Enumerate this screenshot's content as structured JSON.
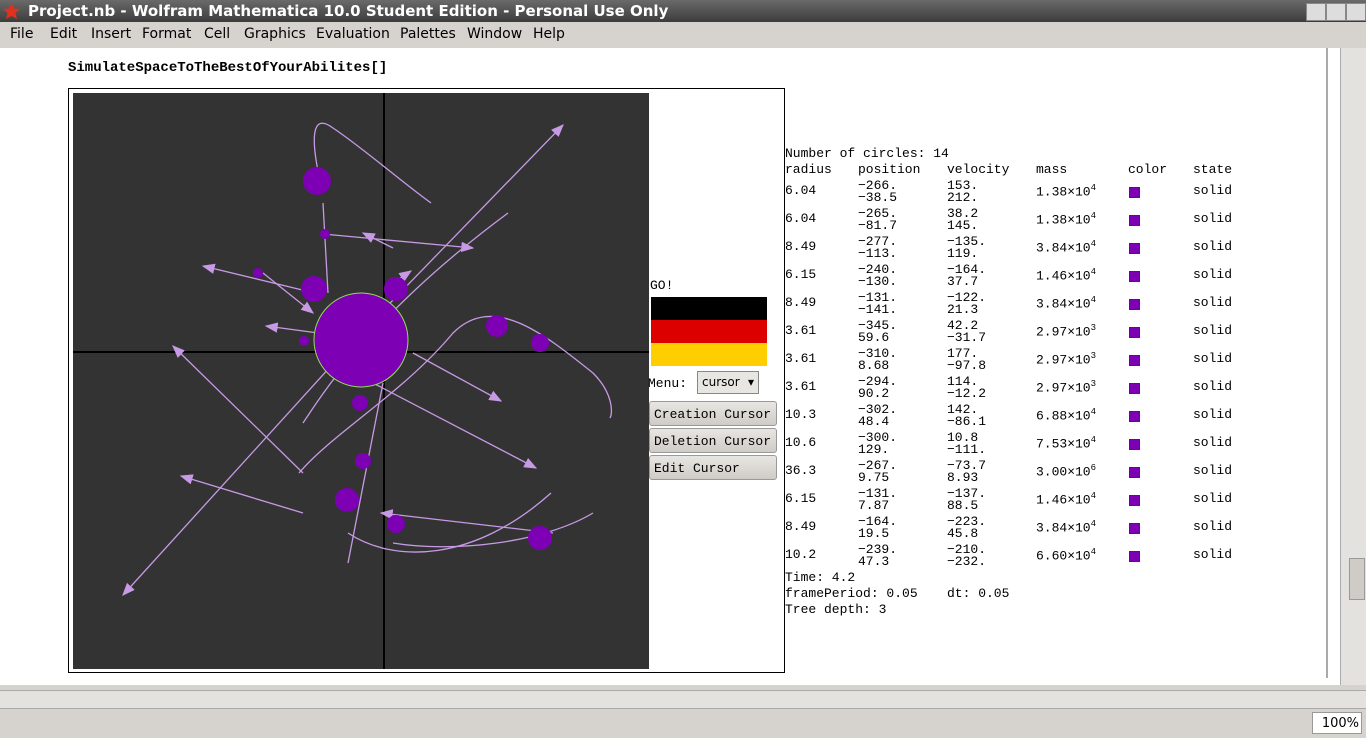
{
  "window": {
    "title": "Project.nb - Wolfram Mathematica 10.0 Student Edition - Personal Use Only",
    "menu": [
      "File",
      "Edit",
      "Insert",
      "Format",
      "Cell",
      "Graphics",
      "Evaluation",
      "Palettes",
      "Window",
      "Help"
    ],
    "zoom": "100%"
  },
  "notebook": {
    "code": "SimulateSpaceToTheBestOfYourAbilites[]"
  },
  "controls": {
    "go": "GO!",
    "menu_label": "Menu:",
    "menu_value": "cursor",
    "buttons": [
      "Creation Cursor",
      "Deletion Cursor",
      "Edit Cursor"
    ]
  },
  "info": {
    "count": "Number of circles: 14",
    "time": "Time: 4.2",
    "frame_period": "framePeriod: 0.05",
    "dt": "dt: 0.05",
    "tree_depth": "Tree depth: 3"
  },
  "table": {
    "header": [
      "radius",
      "position",
      "velocity",
      "mass",
      "color",
      "state"
    ],
    "rows": [
      {
        "radius": "6.04",
        "position": [
          "−266.",
          "−38.5"
        ],
        "velocity": [
          "153.",
          "212."
        ],
        "mass": {
          "base": "1.38×10",
          "exp": "4"
        },
        "state": "solid"
      },
      {
        "radius": "6.04",
        "position": [
          "−265.",
          "−81.7"
        ],
        "velocity": [
          "38.2",
          "145."
        ],
        "mass": {
          "base": "1.38×10",
          "exp": "4"
        },
        "state": "solid"
      },
      {
        "radius": "8.49",
        "position": [
          "−277.",
          "−113."
        ],
        "velocity": [
          "−135.",
          "119."
        ],
        "mass": {
          "base": "3.84×10",
          "exp": "4"
        },
        "state": "solid"
      },
      {
        "radius": "6.15",
        "position": [
          "−240.",
          "−130."
        ],
        "velocity": [
          "−164.",
          "37.7"
        ],
        "mass": {
          "base": "1.46×10",
          "exp": "4"
        },
        "state": "solid"
      },
      {
        "radius": "8.49",
        "position": [
          "−131.",
          "−141."
        ],
        "velocity": [
          "−122.",
          "21.3"
        ],
        "mass": {
          "base": "3.84×10",
          "exp": "4"
        },
        "state": "solid"
      },
      {
        "radius": "3.61",
        "position": [
          "−345.",
          "59.6"
        ],
        "velocity": [
          "42.2",
          "−31.7"
        ],
        "mass": {
          "base": "2.97×10",
          "exp": "3"
        },
        "state": "solid"
      },
      {
        "radius": "3.61",
        "position": [
          "−310.",
          "8.68"
        ],
        "velocity": [
          "177.",
          "−97.8"
        ],
        "mass": {
          "base": "2.97×10",
          "exp": "3"
        },
        "state": "solid"
      },
      {
        "radius": "3.61",
        "position": [
          "−294.",
          "90.2"
        ],
        "velocity": [
          "114.",
          "−12.2"
        ],
        "mass": {
          "base": "2.97×10",
          "exp": "3"
        },
        "state": "solid"
      },
      {
        "radius": "10.3",
        "position": [
          "−302.",
          "48.4"
        ],
        "velocity": [
          "142.",
          "−86.1"
        ],
        "mass": {
          "base": "6.88×10",
          "exp": "4"
        },
        "state": "solid"
      },
      {
        "radius": "10.6",
        "position": [
          "−300.",
          "129."
        ],
        "velocity": [
          "10.8",
          "−111."
        ],
        "mass": {
          "base": "7.53×10",
          "exp": "4"
        },
        "state": "solid"
      },
      {
        "radius": "36.3",
        "position": [
          "−267.",
          "9.75"
        ],
        "velocity": [
          "−73.7",
          "8.93"
        ],
        "mass": {
          "base": "3.00×10",
          "exp": "6"
        },
        "state": "solid"
      },
      {
        "radius": "6.15",
        "position": [
          "−131.",
          "7.87"
        ],
        "velocity": [
          "−137.",
          "88.5"
        ],
        "mass": {
          "base": "1.46×10",
          "exp": "4"
        },
        "state": "solid"
      },
      {
        "radius": "8.49",
        "position": [
          "−164.",
          "19.5"
        ],
        "velocity": [
          "−223.",
          "45.8"
        ],
        "mass": {
          "base": "3.84×10",
          "exp": "4"
        },
        "state": "solid"
      },
      {
        "radius": "10.2",
        "position": [
          "−239.",
          "47.3"
        ],
        "velocity": [
          "−210.",
          "−232."
        ],
        "mass": {
          "base": "6.60×10",
          "exp": "4"
        },
        "state": "solid"
      }
    ]
  }
}
